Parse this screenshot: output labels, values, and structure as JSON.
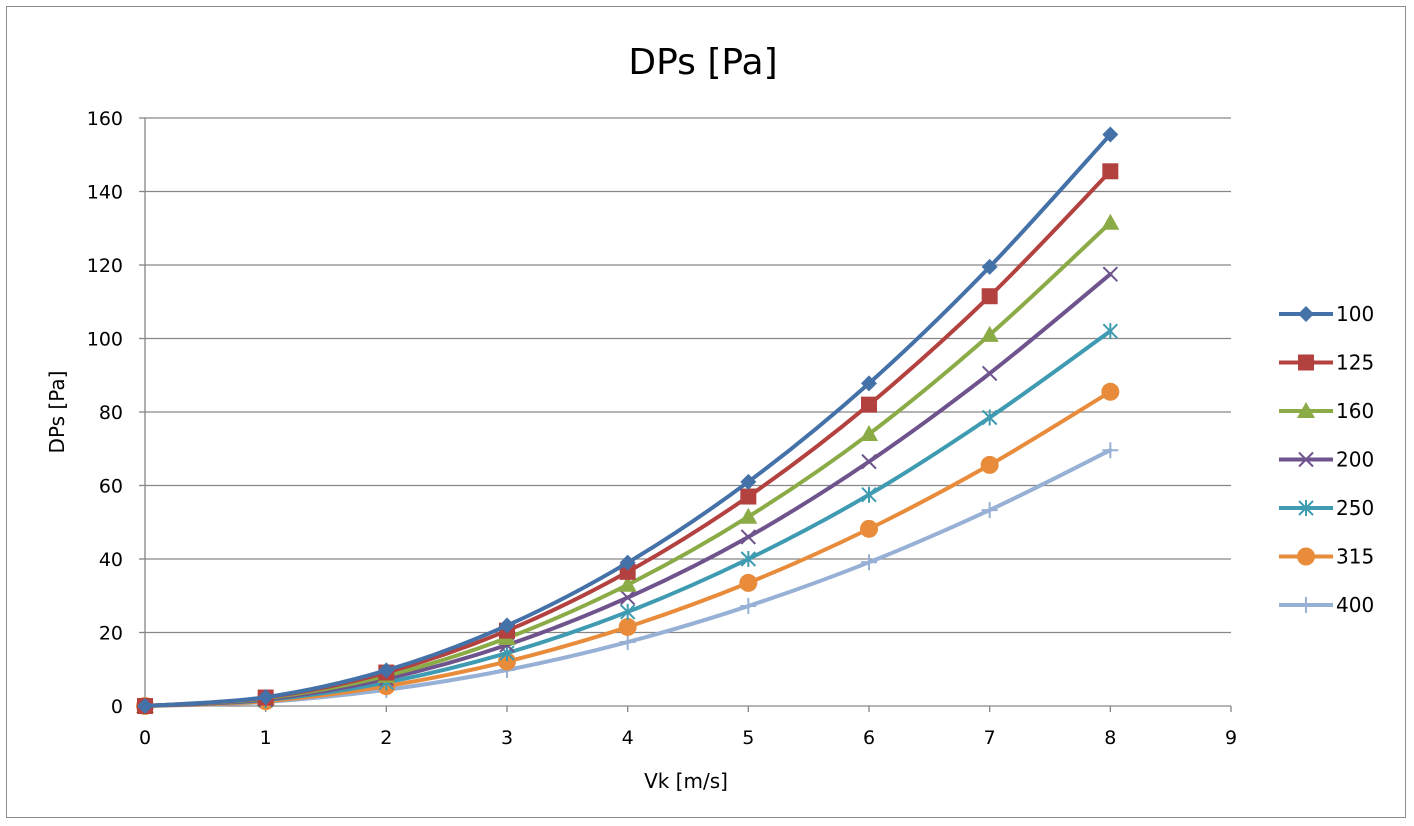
{
  "chart_data": {
    "type": "line",
    "title": "DPs [Pa]",
    "xlabel": "Vk [m/s]",
    "ylabel": "DPs [Pa]",
    "xlim": [
      0,
      9
    ],
    "ylim": [
      0,
      160
    ],
    "xticks": [
      "0",
      "1",
      "2",
      "3",
      "4",
      "5",
      "6",
      "7",
      "8",
      "9"
    ],
    "yticks": [
      "0",
      "20",
      "40",
      "60",
      "80",
      "100",
      "120",
      "140",
      "160"
    ],
    "grid": "horizontal",
    "legend_position": "right",
    "x": [
      0,
      1,
      2,
      3,
      4,
      5,
      6,
      7,
      8
    ],
    "series": [
      {
        "name": "100",
        "color": "#4472A8",
        "marker": "diamond",
        "values": [
          0,
          2.4,
          9.7,
          21.9,
          39,
          61,
          87.8,
          119.5,
          155.5
        ]
      },
      {
        "name": "125",
        "color": "#B3413F",
        "marker": "square",
        "values": [
          0,
          2.3,
          9.1,
          20.5,
          36.5,
          57,
          82,
          111.5,
          145.5
        ]
      },
      {
        "name": "160",
        "color": "#8AAB46",
        "marker": "triangle",
        "values": [
          0,
          2.1,
          8.2,
          18.5,
          33,
          51.5,
          74,
          101,
          131.5
        ]
      },
      {
        "name": "200",
        "color": "#6E538D",
        "marker": "x",
        "values": [
          0,
          1.8,
          7.4,
          16.6,
          29.5,
          46,
          66.5,
          90.5,
          117.5
        ]
      },
      {
        "name": "250",
        "color": "#3E9BB1",
        "marker": "star",
        "values": [
          0,
          1.6,
          6.4,
          14.4,
          25.6,
          40,
          57.5,
          78.5,
          102
        ]
      },
      {
        "name": "315",
        "color": "#E88B3A",
        "marker": "circle",
        "values": [
          0,
          1.3,
          5.4,
          12.1,
          21.5,
          33.5,
          48.2,
          65.6,
          85.5
        ]
      },
      {
        "name": "400",
        "color": "#97B0D5",
        "marker": "plus",
        "values": [
          0,
          1.1,
          4.4,
          9.8,
          17.4,
          27.2,
          39.1,
          53.3,
          69.6
        ]
      }
    ]
  }
}
